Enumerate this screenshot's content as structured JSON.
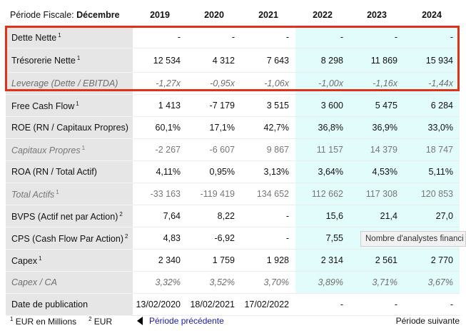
{
  "header": {
    "period_label": "Période Fiscale:",
    "period_value": "Décembre",
    "years": [
      "2019",
      "2020",
      "2021",
      "2022",
      "2023",
      "2024"
    ]
  },
  "rows": [
    {
      "label": "Dette Nette",
      "note": "1",
      "values": [
        "-",
        "-",
        "-",
        "-",
        "-",
        "-"
      ]
    },
    {
      "label": "Trésorerie Nette",
      "note": "1",
      "values": [
        "12 534",
        "4 312",
        "7 643",
        "8 298",
        "11 869",
        "15 934"
      ]
    },
    {
      "label": "Leverage (Dette / EBITDA)",
      "note": "",
      "values": [
        "-1,27x",
        "-0,95x",
        "-1,06x",
        "-1,00x",
        "-1,16x",
        "-1,44x"
      ]
    },
    {
      "label": "Free Cash Flow",
      "note": "1",
      "values": [
        "1 413",
        "-7 179",
        "3 515",
        "3 600",
        "5 475",
        "6 284"
      ]
    },
    {
      "label": "ROE (RN / Capitaux Propres)",
      "note": "",
      "values": [
        "60,1%",
        "17,1%",
        "42,7%",
        "36,8%",
        "36,9%",
        "33,0%"
      ]
    },
    {
      "label": "Capitaux Propres",
      "note": "1",
      "values": [
        "-2 267",
        "-6 607",
        "9 867",
        "11 157",
        "14 379",
        "18 747"
      ]
    },
    {
      "label": "ROA (RN / Total Actif)",
      "note": "",
      "values": [
        "4,11%",
        "0,95%",
        "3,13%",
        "3,64%",
        "4,53%",
        "5,11%"
      ]
    },
    {
      "label": "Total Actifs",
      "note": "1",
      "values": [
        "-33 163",
        "-119 419",
        "134 652",
        "112 662",
        "117 308",
        "120 853"
      ]
    },
    {
      "label": "BVPS (Actif net par Action)",
      "note": "2",
      "values": [
        "7,64",
        "8,22",
        "-",
        "15,6",
        "21,4",
        "27,0"
      ]
    },
    {
      "label": "CPS (Cash Flow Par Action)",
      "note": "2",
      "values": [
        "4,83",
        "-6,92",
        "-",
        "7,55",
        "",
        ""
      ]
    },
    {
      "label": "Capex",
      "note": "1",
      "values": [
        "2 340",
        "1 759",
        "1 928",
        "2 314",
        "2 561",
        "2 770"
      ]
    },
    {
      "label": "Capex / CA",
      "note": "",
      "values": [
        "3,32%",
        "3,52%",
        "3,70%",
        "3,89%",
        "3,71%",
        "3,67%"
      ]
    },
    {
      "label": "Date de publication",
      "note": "",
      "values": [
        "13/02/2020",
        "18/02/2021",
        "17/02/2022",
        "-",
        "-",
        "-"
      ]
    }
  ],
  "tooltip": {
    "text": "Nombre d'analystes financi"
  },
  "footer": {
    "note1_marker": "1",
    "note1_text": "EUR en Millions",
    "note2_marker": "2",
    "note2_text": "EUR",
    "prev_label": "Période précédente",
    "next_label": "Période suivante"
  },
  "colors": {
    "estimate_bg": "#e2fbfb",
    "highlight": "#e0311b",
    "label_bg": "#e6e6e6"
  }
}
